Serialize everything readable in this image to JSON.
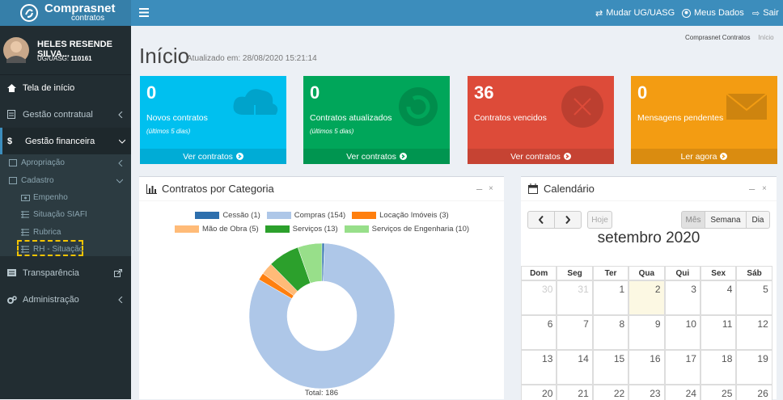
{
  "header": {
    "logo_title": "Comprasnet",
    "logo_subtitle": "contratos",
    "links": [
      "Mudar UG/UASG",
      "Meus Dados",
      "Sair"
    ]
  },
  "sidebar": {
    "user_name": "HELES RESENDE SILVA...",
    "ug_label": "UG/UASG:",
    "ug_code": "110161",
    "menu": [
      "Tela de início",
      "Gestão contratual",
      "Gestão financeira"
    ],
    "submenu": [
      "Apropriação",
      "Cadastro",
      "Empenho",
      "Situação SIAFI",
      "Rubrica",
      "RH - Situação"
    ],
    "menu_bottom": [
      "Transparência",
      "Administração"
    ]
  },
  "page": {
    "title": "Início",
    "updated": "Atualizado em: 28/08/2020 15:21:14",
    "breadcrumb": [
      "Comprasnet Contratos",
      "Início"
    ]
  },
  "cards": [
    {
      "value": 0,
      "label": "Novos contratos",
      "note": "(últimos 5 dias)",
      "link": "Ver contratos",
      "color": "#00c0ef"
    },
    {
      "value": 0,
      "label": "Contratos atualizados",
      "note": "(últimos 5 dias)",
      "link": "Ver contratos",
      "color": "#00a65a"
    },
    {
      "value": 36,
      "label": "Contratos vencidos",
      "link": "Ver contratos",
      "color": "#dd4b39"
    },
    {
      "value": 0,
      "label": "Mensagens pendentes",
      "link": "Ler agora",
      "color": "#f39c12"
    }
  ],
  "chart_data": {
    "type": "pie",
    "title": "Contratos por Categoria",
    "categories": [
      "Cessão (1)",
      "Compras (154)",
      "Locação Imóveis (3)",
      "Mão de Obra (5)",
      "Serviços (13)",
      "Serviços de Engenharia (10)"
    ],
    "values": [
      1,
      154,
      3,
      5,
      13,
      10
    ],
    "colors": [
      "#2d6fad",
      "#aec7e8",
      "#ff7f0e",
      "#ffbb78",
      "#2ca02c",
      "#98df8a"
    ],
    "total_label": "Total: 186"
  },
  "calendar": {
    "title": "Calendário",
    "buttons": [
      "Hoje",
      "Mês",
      "Semana",
      "Dia"
    ],
    "month": "setembro 2020",
    "weekdays": [
      "Dom",
      "Seg",
      "Ter",
      "Qua",
      "Qui",
      "Sex",
      "Sáb"
    ],
    "weeks": [
      [
        30,
        31,
        1,
        2,
        3,
        4,
        5
      ],
      [
        6,
        7,
        8,
        9,
        10,
        11,
        12
      ],
      [
        13,
        14,
        15,
        16,
        17,
        18,
        19
      ],
      [
        20,
        21,
        22,
        23,
        24,
        25,
        26
      ]
    ]
  }
}
